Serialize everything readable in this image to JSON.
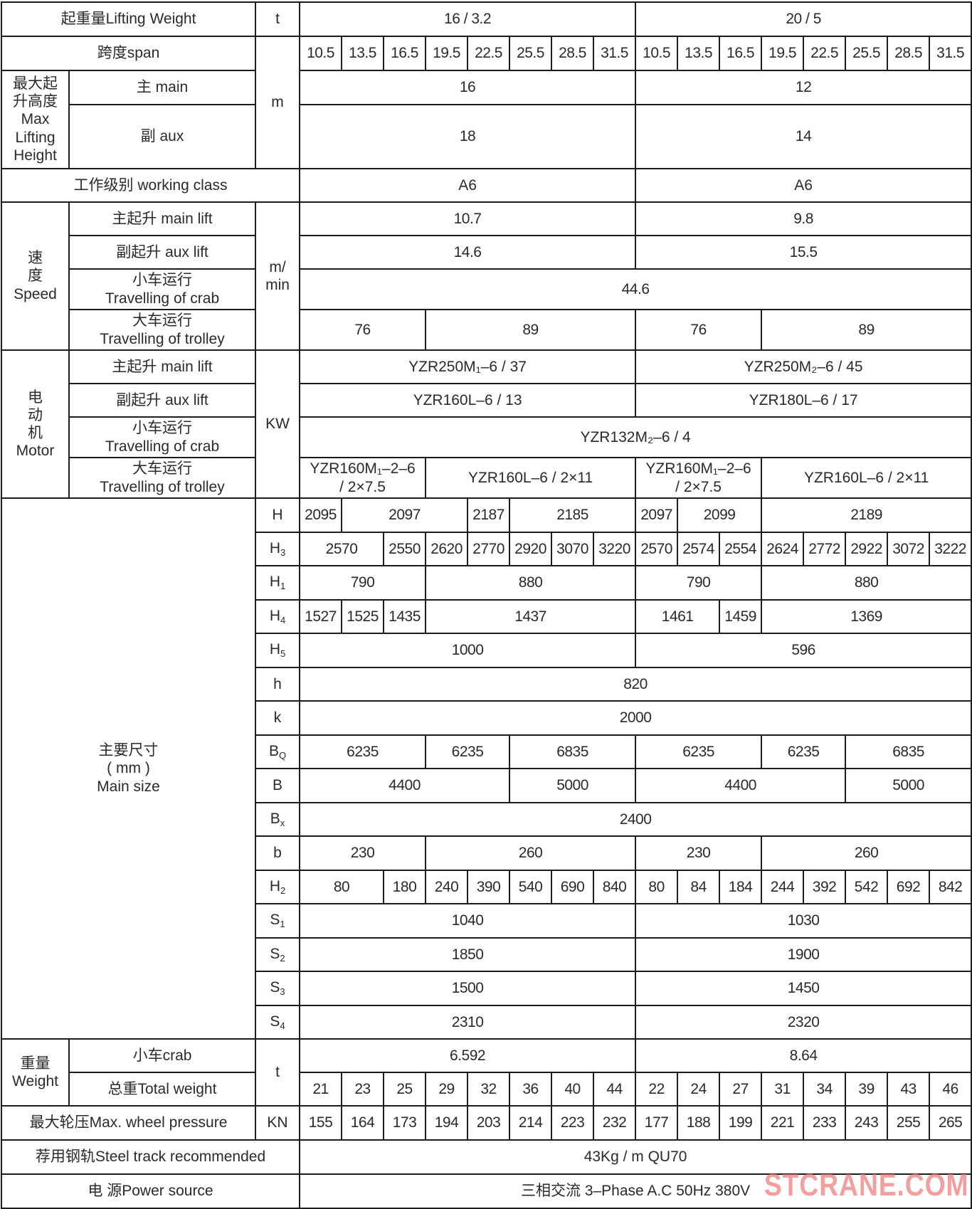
{
  "rows": [
    [
      "起重量Lifting Weight",
      "t",
      "16 / 3.2",
      "20 / 5"
    ],
    [
      "跨度span",
      "m",
      "10.5",
      "13.5",
      "16.5",
      "19.5",
      "22.5",
      "25.5",
      "28.5",
      "31.5",
      "10.5",
      "13.5",
      "16.5",
      "19.5",
      "22.5",
      "25.5",
      "28.5",
      "31.5"
    ],
    [
      "最大起\n升高度\nMax\nLifting\nHeight",
      "主 main",
      "16",
      "12"
    ],
    [
      "副 aux",
      "18",
      "14"
    ],
    [
      "工作级别 working class",
      "A6",
      "A6"
    ],
    [
      "速\n度\nSpeed",
      "主起升  main lift",
      "m/\nmin",
      "10.7",
      "9.8"
    ],
    [
      "副起升 aux lift",
      "14.6",
      "15.5"
    ],
    [
      "小车运行\nTravelling of crab",
      "44.6"
    ],
    [
      "大车运行\nTravelling of trolley",
      "76",
      "89",
      "76",
      "89"
    ],
    [
      "电\n动\n机\nMotor",
      "主起升  main lift",
      "KW",
      "YZR250M₁–6 / 37",
      "YZR250M₂–6 / 45"
    ],
    [
      "副起升 aux lift",
      "YZR160L–6 / 13",
      "YZR180L–6 / 17"
    ],
    [
      "小车运行\nTravelling of crab",
      "YZR132M₂–6 / 4"
    ],
    [
      "大车运行\nTravelling of trolley",
      "YZR160M₁–2–6\n/ 2×7.5",
      "YZR160L–6 / 2×11",
      "YZR160M₁–2–6\n/ 2×7.5",
      "YZR160L–6 / 2×11"
    ],
    [
      "主要尺寸\n( mm )\nMain size",
      "H",
      "2095",
      "2097",
      "2187",
      "2185",
      "2097",
      "2099",
      "2189"
    ],
    [
      "H3",
      "2570",
      "2550",
      "2620",
      "2770",
      "2920",
      "3070",
      "3220",
      "2570",
      "2574",
      "2554",
      "2624",
      "2772",
      "2922",
      "3072",
      "3222"
    ],
    [
      "H1",
      "790",
      "880",
      "790",
      "880"
    ],
    [
      "H4",
      "1527",
      "1525",
      "1435",
      "1437",
      "1461",
      "1459",
      "1369"
    ],
    [
      "H5",
      "1000",
      "596"
    ],
    [
      "h",
      "820"
    ],
    [
      "k",
      "2000"
    ],
    [
      "BQ",
      "6235",
      "6235",
      "6835",
      "6235",
      "6235",
      "6835"
    ],
    [
      "B",
      "4400",
      "5000",
      "4400",
      "5000"
    ],
    [
      "Bx",
      "2400"
    ],
    [
      "b",
      "230",
      "260",
      "230",
      "260"
    ],
    [
      "H2",
      "80",
      "180",
      "240",
      "390",
      "540",
      "690",
      "840",
      "80",
      "84",
      "184",
      "244",
      "392",
      "542",
      "692",
      "842"
    ],
    [
      "S1",
      "1040",
      "1030"
    ],
    [
      "S2",
      "1850",
      "1900"
    ],
    [
      "S3",
      "1500",
      "1450"
    ],
    [
      "S4",
      "2310",
      "2320"
    ],
    [
      "重量\nWeight",
      "小车crab",
      "t",
      "6.592",
      "8.64"
    ],
    [
      "总重Total weight",
      "21",
      "23",
      "25",
      "29",
      "32",
      "36",
      "40",
      "44",
      "22",
      "24",
      "27",
      "31",
      "34",
      "39",
      "43",
      "46"
    ],
    [
      "最大轮压Max.   wheel pressure",
      "KN",
      "155",
      "164",
      "173",
      "194",
      "203",
      "214",
      "223",
      "232",
      "177",
      "188",
      "199",
      "221",
      "233",
      "243",
      "255",
      "265"
    ],
    [
      "荐用钢轨Steel track recommended",
      "43Kg / m QU70"
    ],
    [
      "电  源Power source",
      "三相交流  3–Phase  A.C  50Hz 380V"
    ]
  ],
  "watermark": "STCRANE.COM",
  "colors": {
    "border": "#1e1e1e",
    "text": "#2a2a2a",
    "watermark": "#f08080"
  }
}
